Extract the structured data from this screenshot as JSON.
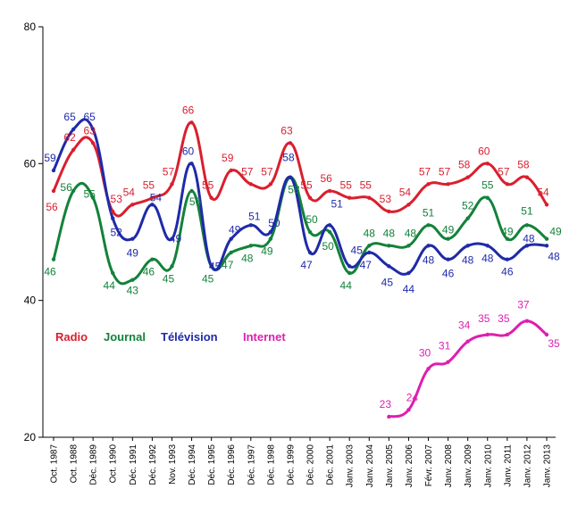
{
  "chart_data": {
    "type": "line",
    "categories": [
      "Oct. 1987",
      "Oct. 1988",
      "Déc. 1989",
      "Oct. 1990",
      "Déc. 1991",
      "Déc. 1992",
      "Nov. 1993",
      "Déc. 1994",
      "Déc. 1995",
      "Déc. 1996",
      "Déc. 1997",
      "Déc. 1998",
      "Déc. 1999",
      "Déc. 2000",
      "Déc. 2001",
      "Janv. 2003",
      "Janv. 2004",
      "Janv. 2005",
      "Janv. 2006",
      "Févr. 2007",
      "Janv. 2008",
      "Janv. 2009",
      "Janv. 2010",
      "Janv. 2011",
      "Janv. 2012",
      "Janv. 2013"
    ],
    "ylim": [
      20,
      80
    ],
    "yticks": [
      "20",
      "40",
      "60",
      "80"
    ],
    "grid": false,
    "legend_position": "left, inside plot",
    "series": [
      {
        "name": "Radio",
        "color": "#d91f2e",
        "values": [
          56,
          62,
          63,
          53,
          54,
          55,
          57,
          66,
          55,
          59,
          57,
          57,
          63,
          55,
          56,
          55,
          55,
          53,
          54,
          57,
          57,
          58,
          60,
          57,
          58,
          54
        ]
      },
      {
        "name": "Journal",
        "color": "#13823a",
        "values": [
          46,
          56,
          55,
          44,
          43,
          46,
          45,
          56,
          45,
          47,
          48,
          49,
          58,
          50,
          50,
          44,
          48,
          48,
          48,
          51,
          49,
          52,
          55,
          49,
          51,
          49
        ]
      },
      {
        "name": "Télévision",
        "color": "#1f2aa8",
        "values": [
          59,
          65,
          65,
          52,
          49,
          54,
          49,
          60,
          45,
          49,
          51,
          50,
          58,
          47,
          51,
          45,
          47,
          45,
          44,
          48,
          46,
          48,
          48,
          46,
          48,
          48
        ]
      },
      {
        "name": "Internet",
        "color": "#dd1fb0",
        "values": [
          null,
          null,
          null,
          null,
          null,
          null,
          null,
          null,
          null,
          null,
          null,
          null,
          null,
          null,
          null,
          null,
          null,
          23,
          24,
          30,
          31,
          34,
          35,
          35,
          37,
          35
        ]
      }
    ]
  }
}
